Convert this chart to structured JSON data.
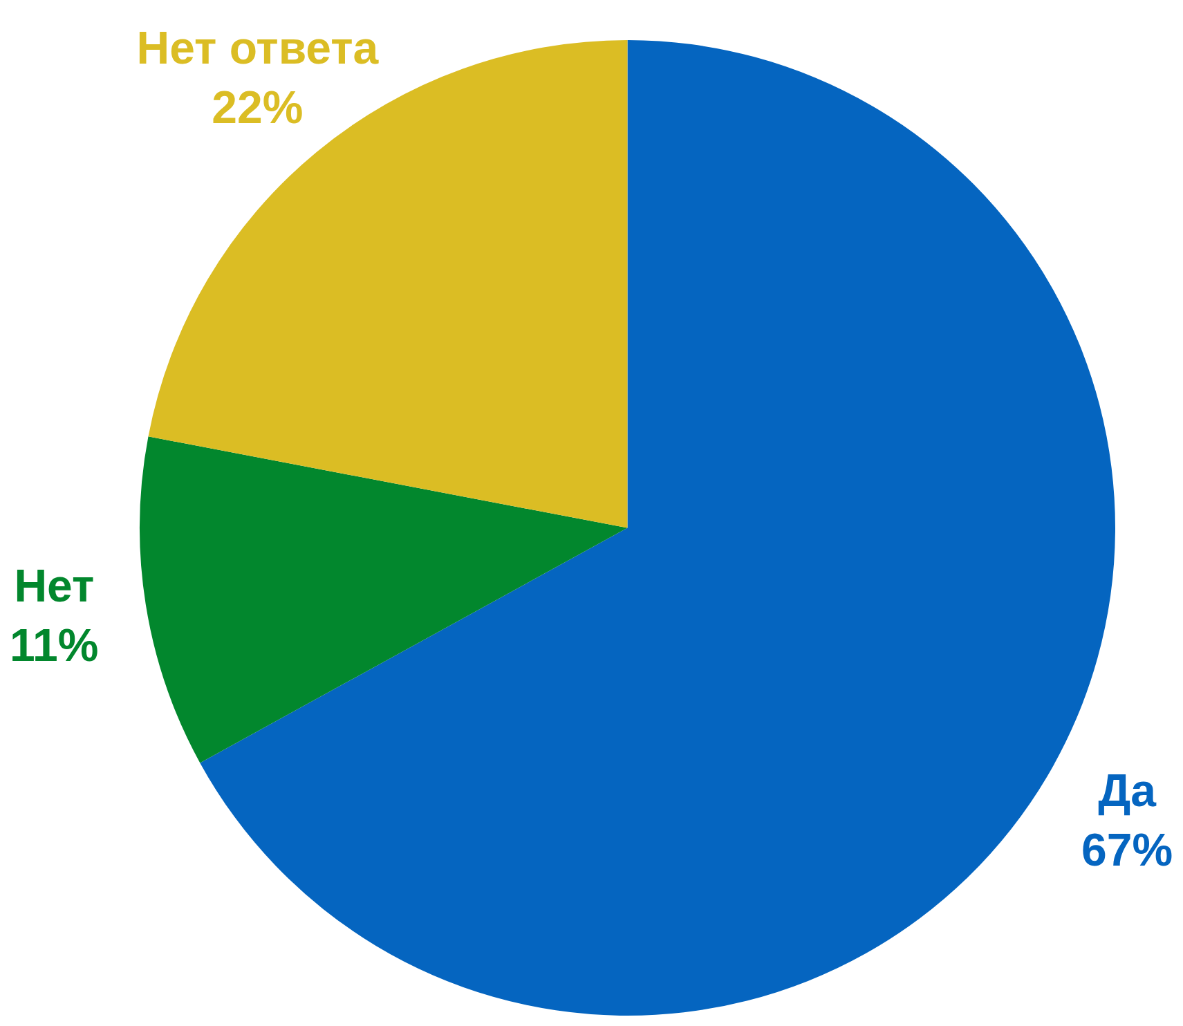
{
  "chart_data": {
    "type": "pie",
    "categories": [
      "Да",
      "Нет",
      "Нет ответа"
    ],
    "values": [
      67,
      11,
      22
    ],
    "value_labels": [
      "67%",
      "11%",
      "22%"
    ],
    "colors": [
      "#0565c0",
      "#02872d",
      "#dbbd24"
    ],
    "legend": false
  }
}
